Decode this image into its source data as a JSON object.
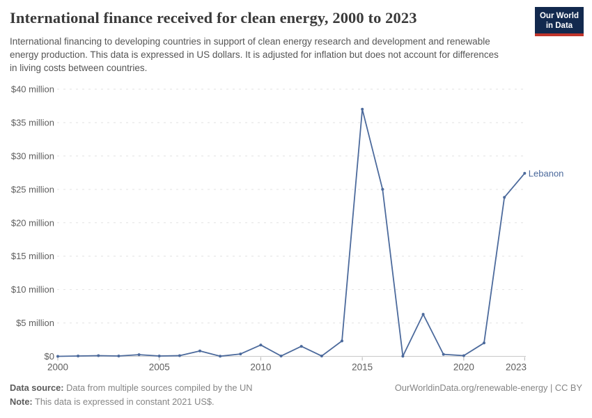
{
  "header": {
    "title": "International finance received for clean energy, 2000 to 2023",
    "subtitle": "International financing to developing countries in support of clean energy research and development and renewable energy production. This data is expressed in US dollars. It is adjusted for inflation but does not account for differences in living costs between countries.",
    "logo": {
      "line1": "Our World",
      "line2": "in Data",
      "bg_color": "#12294e",
      "accent_color": "#c0342b"
    }
  },
  "chart_data": {
    "type": "line",
    "title": "International finance received for clean energy, 2000 to 2023",
    "xlabel": "",
    "ylabel": "",
    "xlim": [
      2000,
      2023
    ],
    "ylim": [
      0,
      40000000
    ],
    "grid": true,
    "legend_position": "end-of-line-label",
    "x_ticks": [
      2000,
      2005,
      2010,
      2015,
      2020,
      2023
    ],
    "y_ticks": [
      {
        "value": 0,
        "label": "$0"
      },
      {
        "value": 5000000,
        "label": "$5 million"
      },
      {
        "value": 10000000,
        "label": "$10 million"
      },
      {
        "value": 15000000,
        "label": "$15 million"
      },
      {
        "value": 20000000,
        "label": "$20 million"
      },
      {
        "value": 25000000,
        "label": "$25 million"
      },
      {
        "value": 30000000,
        "label": "$30 million"
      },
      {
        "value": 35000000,
        "label": "$35 million"
      },
      {
        "value": 40000000,
        "label": "$40 million"
      }
    ],
    "series": [
      {
        "name": "Lebanon",
        "color": "#4C6A9C",
        "x": [
          2000,
          2001,
          2002,
          2003,
          2004,
          2005,
          2006,
          2007,
          2008,
          2009,
          2010,
          2011,
          2012,
          2013,
          2014,
          2015,
          2016,
          2017,
          2018,
          2019,
          2020,
          2021,
          2022,
          2023
        ],
        "values": [
          0,
          50000,
          100000,
          50000,
          250000,
          50000,
          100000,
          800000,
          20000,
          350000,
          1700000,
          50000,
          1500000,
          50000,
          2300000,
          37000000,
          25000000,
          20000,
          6300000,
          300000,
          100000,
          2000000,
          23800000,
          27400000
        ]
      }
    ],
    "colors": {
      "gridline": "#e2e2e2",
      "axis": "#c8c8c8",
      "tick": "#b3b3b3",
      "tick_label": "#5e5e5e"
    }
  },
  "footer": {
    "source_label": "Data source:",
    "source_text": "Data from multiple sources compiled by the UN",
    "note_label": "Note:",
    "note_text": "This data is expressed in constant 2021 US$.",
    "url": "OurWorldinData.org/renewable-energy",
    "license": " | CC BY"
  }
}
